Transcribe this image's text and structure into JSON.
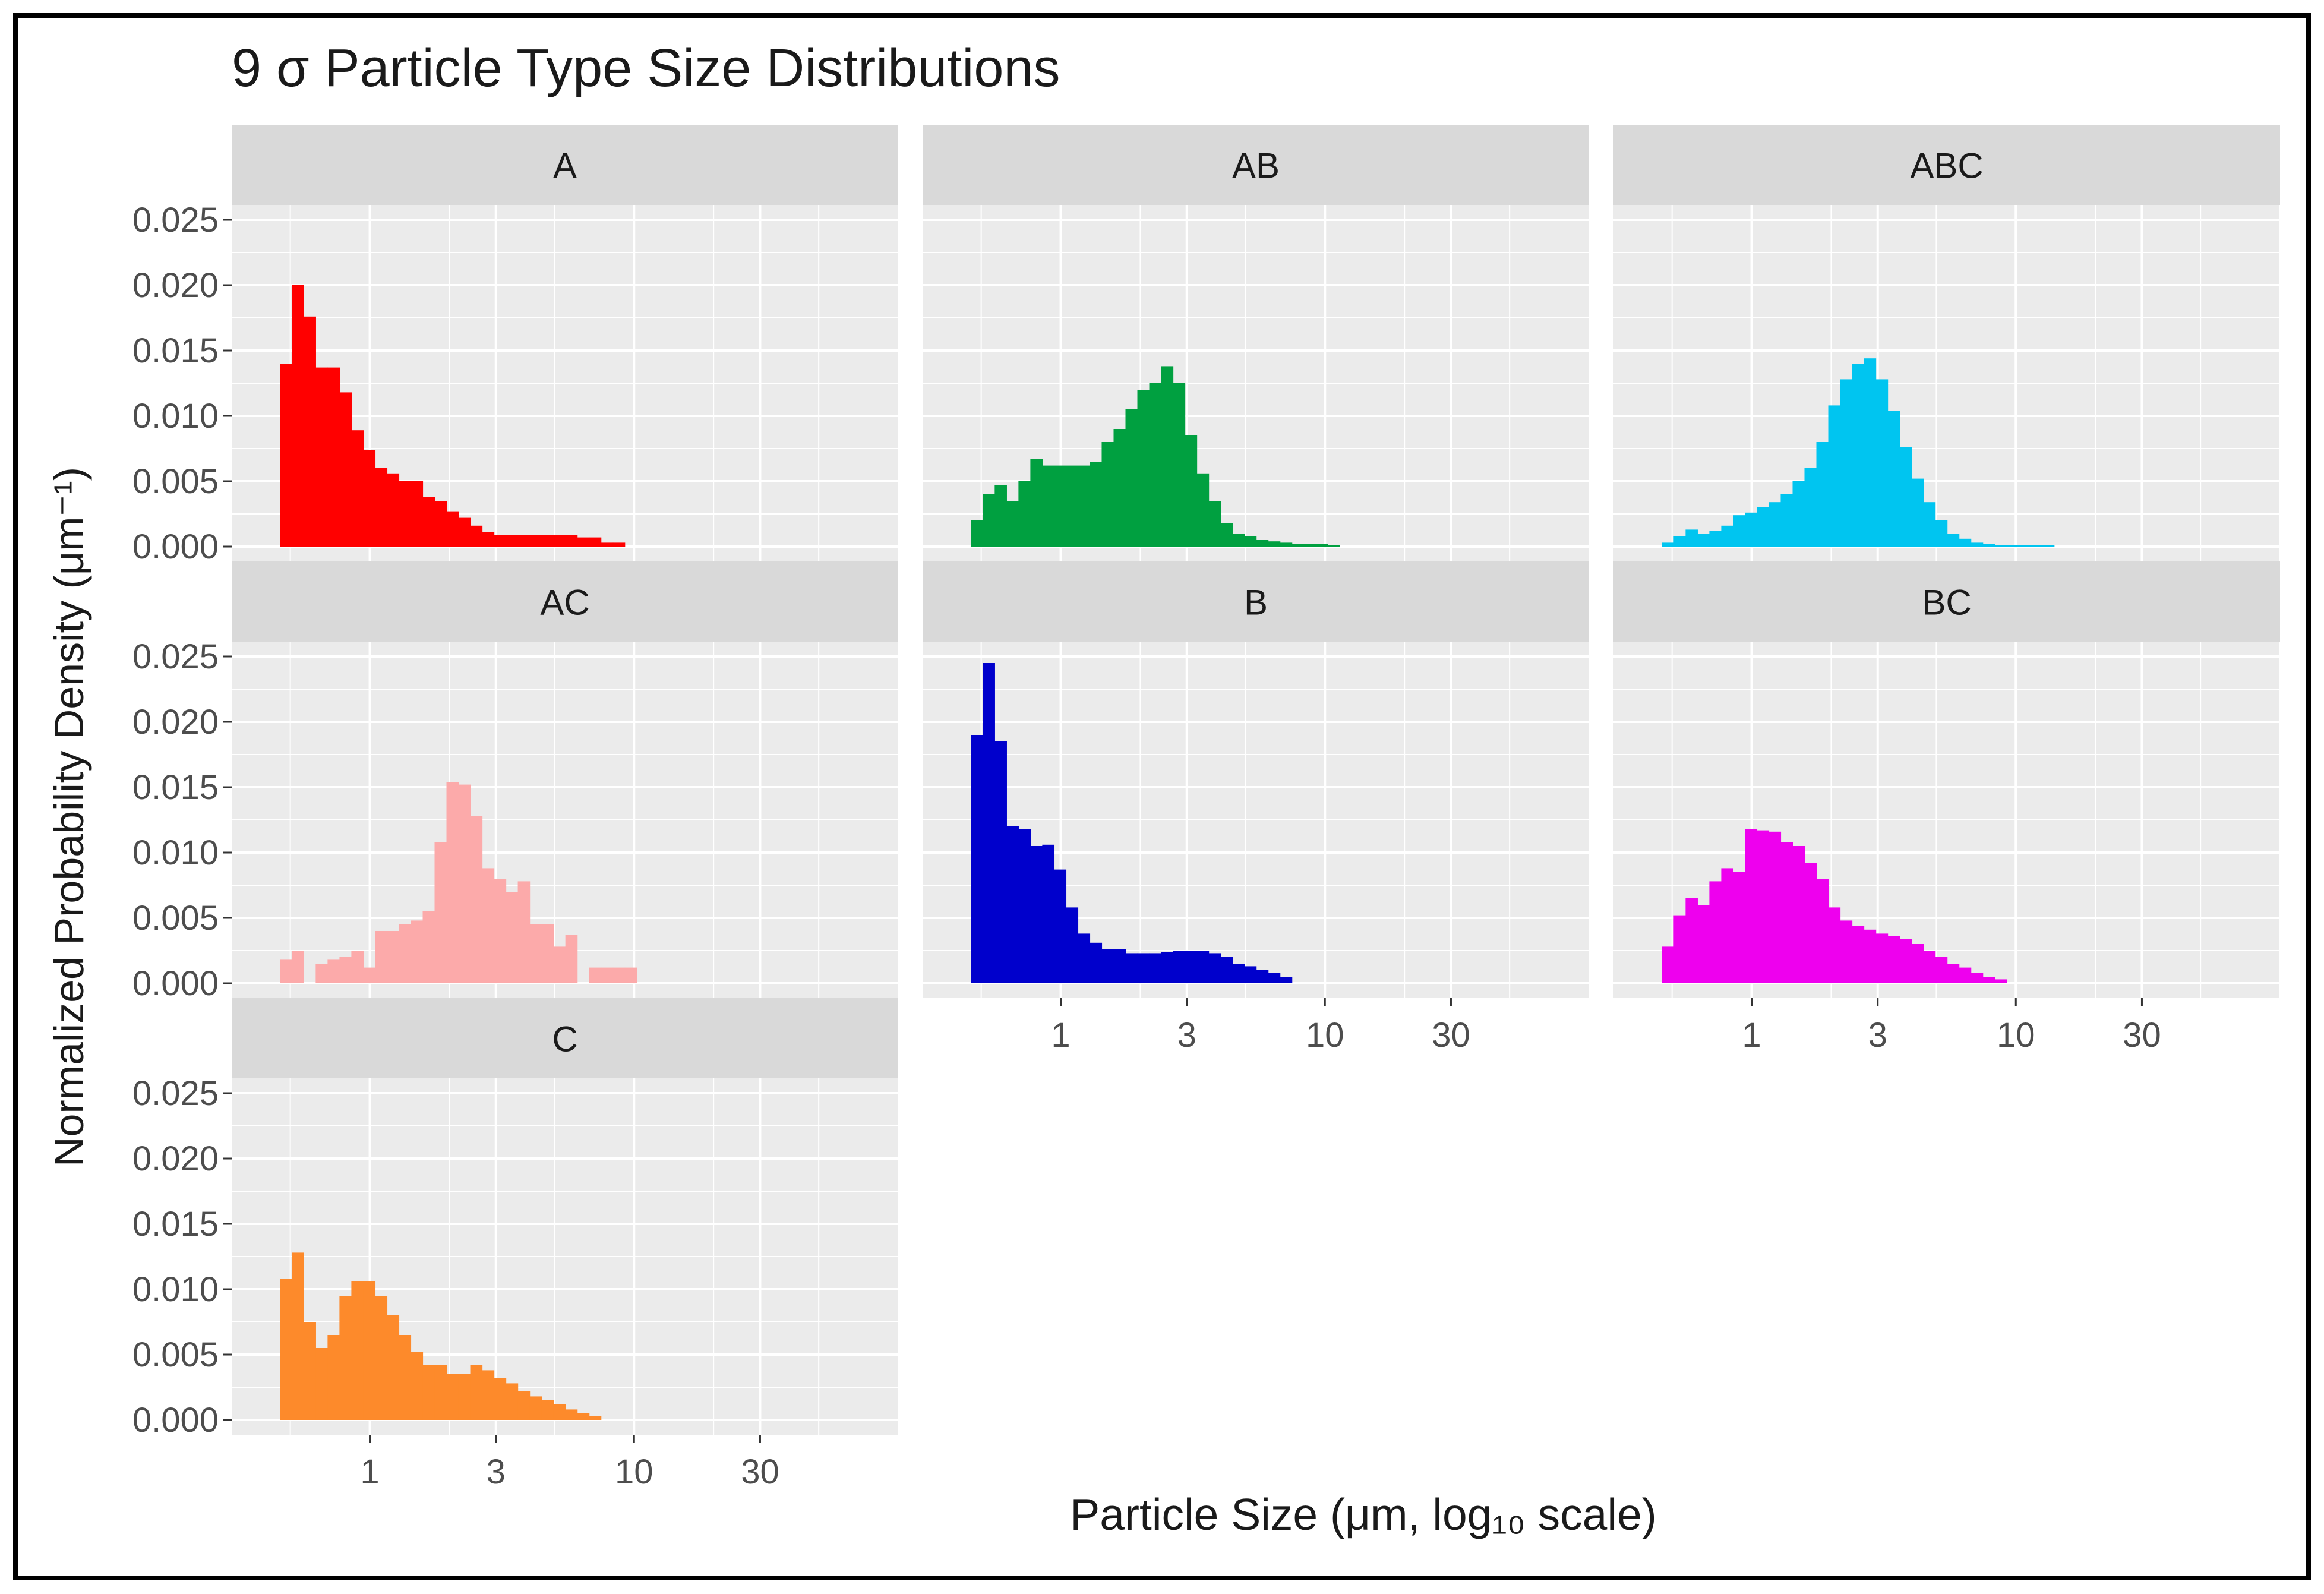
{
  "chart_data": {
    "type": "bar",
    "title": "9 σ Particle Type Size Distributions",
    "xlabel": "Particle Size (μm, log₁₀ scale)",
    "ylabel": "Normalized Probability Density (μm⁻¹)",
    "x_scale": "log10",
    "xlim": [
      0.3,
      100
    ],
    "ylim": [
      0,
      0.025
    ],
    "y_ticks": [
      "0.000",
      "0.005",
      "0.010",
      "0.015",
      "0.020",
      "0.025"
    ],
    "x_ticks": [
      "1",
      "3",
      "10",
      "30"
    ],
    "bin_start_log10": -0.34,
    "bin_width_log10": 0.045,
    "panels": [
      {
        "name": "A",
        "color": "#ff0000",
        "values": [
          0.014,
          0.02,
          0.0176,
          0.0137,
          0.0137,
          0.0118,
          0.0089,
          0.0074,
          0.006,
          0.0056,
          0.005,
          0.005,
          0.0038,
          0.0035,
          0.0027,
          0.0022,
          0.0016,
          0.0011,
          0.0009,
          0.0009,
          0.0009,
          0.0009,
          0.0009,
          0.0009,
          0.0009,
          0.0007,
          0.0007,
          0.0003,
          0.0003
        ]
      },
      {
        "name": "AB",
        "color": "#00a040",
        "values": [
          0.002,
          0.004,
          0.0047,
          0.0035,
          0.005,
          0.0067,
          0.0062,
          0.0062,
          0.0062,
          0.0062,
          0.0065,
          0.008,
          0.009,
          0.0105,
          0.012,
          0.0125,
          0.0138,
          0.0125,
          0.0085,
          0.0056,
          0.0035,
          0.0018,
          0.001,
          0.0008,
          0.0005,
          0.0004,
          0.0003,
          0.0002,
          0.0002,
          0.0002,
          0.0001
        ]
      },
      {
        "name": "ABC",
        "color": "#00c5f0",
        "values": [
          0.0003,
          0.0008,
          0.0013,
          0.001,
          0.0012,
          0.0016,
          0.0024,
          0.0026,
          0.003,
          0.0034,
          0.004,
          0.005,
          0.006,
          0.008,
          0.0108,
          0.0128,
          0.014,
          0.0144,
          0.0128,
          0.0104,
          0.0076,
          0.0052,
          0.0034,
          0.002,
          0.001,
          0.0006,
          0.0003,
          0.0002,
          0.0001,
          0.0001,
          0.0001,
          0.0001,
          0.0001
        ]
      },
      {
        "name": "AC",
        "color": "#fcaaaa",
        "values": [
          0.0018,
          0.0025,
          0,
          0.0015,
          0.0018,
          0.002,
          0.0025,
          0.0012,
          0.004,
          0.004,
          0.0045,
          0.0048,
          0.0055,
          0.0108,
          0.0154,
          0.0152,
          0.0128,
          0.0088,
          0.008,
          0.007,
          0.0078,
          0.0045,
          0.0045,
          0.0028,
          0.0037,
          0,
          0.0012,
          0.0012,
          0.0012,
          0.0012
        ]
      },
      {
        "name": "B",
        "color": "#0000cc",
        "values": [
          0.019,
          0.0245,
          0.0185,
          0.012,
          0.0118,
          0.0105,
          0.0106,
          0.0087,
          0.0058,
          0.0038,
          0.0031,
          0.0026,
          0.0026,
          0.0023,
          0.0023,
          0.0023,
          0.0024,
          0.0025,
          0.0025,
          0.0025,
          0.0023,
          0.002,
          0.0015,
          0.0013,
          0.001,
          0.0008,
          0.0005
        ]
      },
      {
        "name": "BC",
        "color": "#ee00ee",
        "values": [
          0.0028,
          0.0052,
          0.0065,
          0.006,
          0.0078,
          0.0088,
          0.0085,
          0.0118,
          0.0117,
          0.0116,
          0.0108,
          0.0105,
          0.0092,
          0.008,
          0.0058,
          0.0048,
          0.0044,
          0.0041,
          0.0038,
          0.0036,
          0.0034,
          0.003,
          0.0025,
          0.002,
          0.0015,
          0.0012,
          0.0008,
          0.0005,
          0.0003
        ]
      },
      {
        "name": "C",
        "color": "#fd8a2b",
        "values": [
          0.0108,
          0.0128,
          0.0075,
          0.0055,
          0.0065,
          0.0095,
          0.0106,
          0.0106,
          0.0095,
          0.008,
          0.0065,
          0.0052,
          0.0042,
          0.0042,
          0.0035,
          0.0035,
          0.0042,
          0.0038,
          0.0032,
          0.0028,
          0.0022,
          0.0018,
          0.0015,
          0.0012,
          0.0008,
          0.0005,
          0.0003
        ]
      }
    ]
  }
}
